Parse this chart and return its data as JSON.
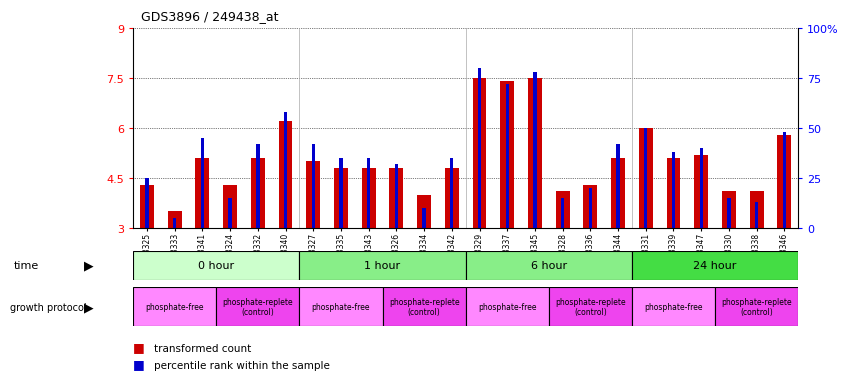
{
  "title": "GDS3896 / 249438_at",
  "samples": [
    "GSM618325",
    "GSM618333",
    "GSM618341",
    "GSM618324",
    "GSM618332",
    "GSM618340",
    "GSM618327",
    "GSM618335",
    "GSM618343",
    "GSM618326",
    "GSM618334",
    "GSM618342",
    "GSM618329",
    "GSM618337",
    "GSM618345",
    "GSM618328",
    "GSM618336",
    "GSM618344",
    "GSM618331",
    "GSM618339",
    "GSM618347",
    "GSM618330",
    "GSM618338",
    "GSM618346"
  ],
  "transformed_count": [
    4.3,
    3.5,
    5.1,
    4.3,
    5.1,
    6.2,
    5.0,
    4.8,
    4.8,
    4.8,
    4.0,
    4.8,
    7.5,
    7.4,
    7.5,
    4.1,
    4.3,
    5.1,
    6.0,
    5.1,
    5.2,
    4.1,
    4.1,
    5.8
  ],
  "percentile_rank": [
    25,
    5,
    45,
    15,
    42,
    58,
    42,
    35,
    35,
    32,
    10,
    35,
    80,
    72,
    78,
    15,
    20,
    42,
    50,
    38,
    40,
    15,
    13,
    48
  ],
  "time_groups": [
    {
      "label": "0 hour",
      "start": 0,
      "end": 6,
      "color": "#ccffcc"
    },
    {
      "label": "1 hour",
      "start": 6,
      "end": 12,
      "color": "#88ee88"
    },
    {
      "label": "6 hour",
      "start": 12,
      "end": 18,
      "color": "#88ee88"
    },
    {
      "label": "24 hour",
      "start": 18,
      "end": 24,
      "color": "#44dd44"
    }
  ],
  "protocol_groups": [
    {
      "label": "phosphate-free",
      "start": 0,
      "end": 3,
      "color": "#ff88ff"
    },
    {
      "label": "phosphate-replete\n(control)",
      "start": 3,
      "end": 6,
      "color": "#ee44ee"
    },
    {
      "label": "phosphate-free",
      "start": 6,
      "end": 9,
      "color": "#ff88ff"
    },
    {
      "label": "phosphate-replete\n(control)",
      "start": 9,
      "end": 12,
      "color": "#ee44ee"
    },
    {
      "label": "phosphate-free",
      "start": 12,
      "end": 15,
      "color": "#ff88ff"
    },
    {
      "label": "phosphate-replete\n(control)",
      "start": 15,
      "end": 18,
      "color": "#ee44ee"
    },
    {
      "label": "phosphate-free",
      "start": 18,
      "end": 21,
      "color": "#ff88ff"
    },
    {
      "label": "phosphate-replete\n(control)",
      "start": 21,
      "end": 24,
      "color": "#ee44ee"
    }
  ],
  "ylim_left": [
    3,
    9
  ],
  "ylim_right": [
    0,
    100
  ],
  "yticks_left": [
    3,
    4.5,
    6,
    7.5,
    9
  ],
  "yticks_right": [
    0,
    25,
    50,
    75,
    100
  ],
  "bar_color_red": "#cc0000",
  "bar_color_blue": "#0000cc",
  "bg_color": "#ffffff",
  "red_bar_width": 0.5,
  "blue_bar_width": 0.12
}
